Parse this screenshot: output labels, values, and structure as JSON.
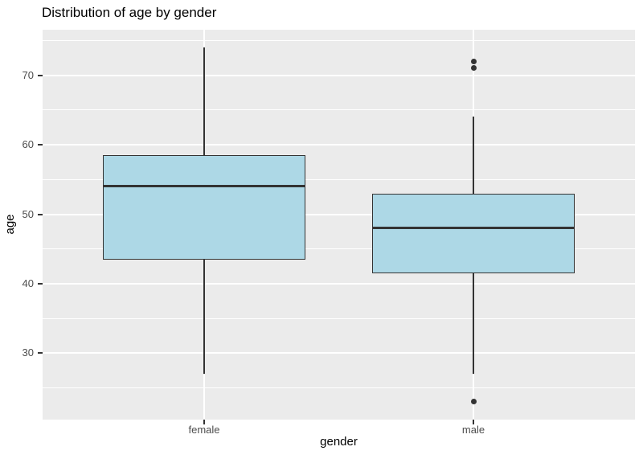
{
  "chart_data": {
    "type": "boxplot",
    "title": "Distribution of age by gender",
    "xlabel": "gender",
    "ylabel": "age",
    "categories": [
      "female",
      "male"
    ],
    "series": [
      {
        "category": "female",
        "whisker_min": 27,
        "q1": 43.5,
        "median": 54,
        "q3": 58.5,
        "whisker_max": 74,
        "outliers": []
      },
      {
        "category": "male",
        "whisker_min": 27,
        "q1": 41.5,
        "median": 48,
        "q3": 53,
        "whisker_max": 64,
        "outliers": [
          72,
          71,
          23
        ]
      }
    ],
    "ylim": [
      20.45,
      76.55
    ],
    "yticks": [
      30,
      40,
      50,
      60,
      70
    ],
    "yticks_minor": [
      25,
      35,
      45,
      55,
      65,
      75
    ],
    "grid": "major-and-minor-horizontal-plus-category-vertical",
    "legend": false,
    "box_width_fraction": 0.75,
    "colors": {
      "panel_bg": "#EBEBEB",
      "grid_major": "#FFFFFF",
      "grid_minor": "#FFFFFF",
      "box_fill": "#ADD8E6",
      "box_stroke": "#333333",
      "median": "#333333",
      "whisker": "#333333",
      "outlier": "#333333",
      "tick_mark": "#333333",
      "tick_label": "#4D4D4D",
      "axis_title": "#000000",
      "title": "#000000"
    }
  }
}
